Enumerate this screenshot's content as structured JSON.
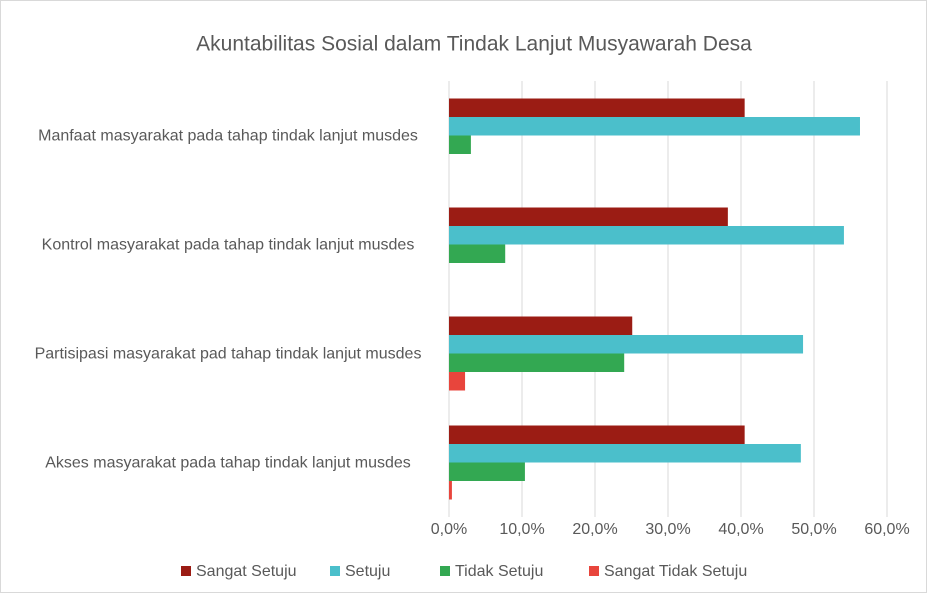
{
  "chart_data": {
    "type": "bar",
    "orientation": "horizontal",
    "title": "Akuntabilitas Sosial dalam Tindak Lanjut Musyawarah Desa",
    "categories": [
      "Manfaat masyarakat pada tahap tindak lanjut musdes",
      "Kontrol masyarakat pada tahap tindak lanjut musdes",
      "Partisipasi masyarakat pad tahap tindak lanjut musdes",
      "Akses masyarakat pada tahap tindak lanjut musdes"
    ],
    "series": [
      {
        "name": "Sangat Setuju",
        "color": "#9b1c14",
        "values": [
          40.5,
          38.2,
          25.1,
          40.5
        ]
      },
      {
        "name": "Setuju",
        "color": "#4bbfcb",
        "values": [
          56.3,
          54.1,
          48.5,
          48.2
        ]
      },
      {
        "name": "Tidak Setuju",
        "color": "#33a852",
        "values": [
          3.0,
          7.7,
          24.0,
          10.4
        ]
      },
      {
        "name": "Sangat Tidak Setuju",
        "color": "#e8453c",
        "values": [
          0,
          0,
          2.2,
          0.4
        ]
      }
    ],
    "xlim": [
      0,
      60
    ],
    "xticks": [
      {
        "value": 0,
        "label": "0,0%"
      },
      {
        "value": 10,
        "label": "10,0%"
      },
      {
        "value": 20,
        "label": "20,0%"
      },
      {
        "value": 30,
        "label": "30,0%"
      },
      {
        "value": 40,
        "label": "40,0%"
      },
      {
        "value": 50,
        "label": "50,0%"
      },
      {
        "value": 60,
        "label": "60,0%"
      }
    ],
    "grid": true,
    "legend": "bottom"
  }
}
